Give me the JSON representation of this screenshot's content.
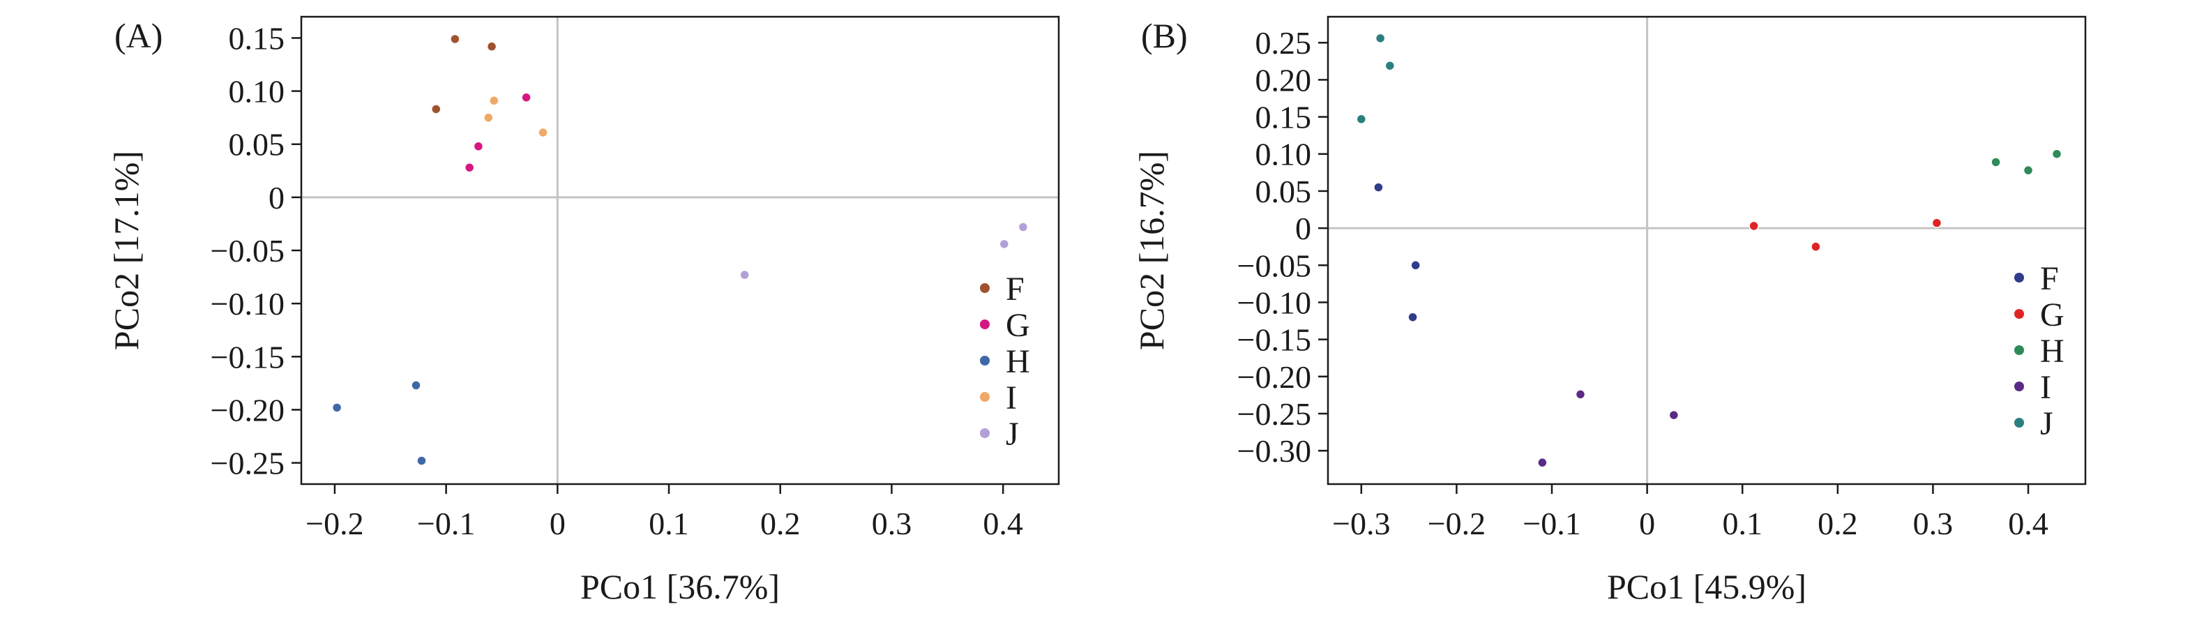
{
  "chart_data": [
    {
      "panel_label": "(A)",
      "type": "scatter",
      "xlabel": "PCo1 [36.7%]",
      "ylabel": "PCo2 [17.1%]",
      "xlim": [
        -0.23,
        0.45
      ],
      "ylim": [
        -0.27,
        0.17
      ],
      "xticks": [
        -0.2,
        -0.1,
        0,
        0.1,
        0.2,
        0.3,
        0.4
      ],
      "xtick_labels": [
        "−0.2",
        "−0.1",
        "0",
        "0.1",
        "0.2",
        "0.3",
        "0.4"
      ],
      "yticks": [
        0.15,
        0.1,
        0.05,
        0,
        -0.05,
        -0.1,
        -0.15,
        -0.2,
        -0.25
      ],
      "ytick_labels": [
        "0.15",
        "0.10",
        "0.05",
        "0",
        "−0.05",
        "−0.10",
        "−0.15",
        "−0.20",
        "−0.25"
      ],
      "legend_position": "right",
      "grid": false,
      "zero_lines": true,
      "series": [
        {
          "name": "F",
          "color": "#a0522d",
          "points": [
            [
              -0.092,
              0.149
            ],
            [
              -0.059,
              0.142
            ],
            [
              -0.109,
              0.083
            ]
          ]
        },
        {
          "name": "G",
          "color": "#d6177f",
          "points": [
            [
              -0.028,
              0.094
            ],
            [
              -0.071,
              0.048
            ],
            [
              -0.079,
              0.028
            ]
          ]
        },
        {
          "name": "H",
          "color": "#3f68a6",
          "points": [
            [
              -0.127,
              -0.177
            ],
            [
              -0.198,
              -0.198
            ],
            [
              -0.122,
              -0.248
            ]
          ]
        },
        {
          "name": "I",
          "color": "#f0a866",
          "points": [
            [
              -0.057,
              0.091
            ],
            [
              -0.062,
              0.075
            ],
            [
              -0.013,
              0.061
            ]
          ]
        },
        {
          "name": "J",
          "color": "#b3a0d6",
          "points": [
            [
              0.418,
              -0.028
            ],
            [
              0.401,
              -0.044
            ],
            [
              0.168,
              -0.073
            ]
          ]
        }
      ]
    },
    {
      "panel_label": "(B)",
      "type": "scatter",
      "xlabel": "PCo1 [45.9%]",
      "ylabel": "PCo2 [16.7%]",
      "xlim": [
        -0.335,
        0.46
      ],
      "ylim": [
        -0.345,
        0.285
      ],
      "xticks": [
        -0.3,
        -0.2,
        -0.1,
        0,
        0.1,
        0.2,
        0.3,
        0.4
      ],
      "xtick_labels": [
        "−0.3",
        "−0.2",
        "−0.1",
        "0",
        "0.1",
        "0.2",
        "0.3",
        "0.4"
      ],
      "yticks": [
        0.25,
        0.2,
        0.15,
        0.1,
        0.05,
        0,
        -0.05,
        -0.1,
        -0.15,
        -0.2,
        -0.25,
        -0.3
      ],
      "ytick_labels": [
        "0.25",
        "0.20",
        "0.15",
        "0.10",
        "0.05",
        "0",
        "−0.05",
        "−0.10",
        "−0.15",
        "−0.20",
        "−0.25",
        "−0.30"
      ],
      "legend_position": "right",
      "grid": false,
      "zero_lines": true,
      "series": [
        {
          "name": "F",
          "color": "#2e3c8a",
          "points": [
            [
              -0.282,
              0.055
            ],
            [
              -0.243,
              -0.05
            ],
            [
              -0.246,
              -0.12
            ]
          ]
        },
        {
          "name": "G",
          "color": "#e02424",
          "points": [
            [
              0.112,
              0.003
            ],
            [
              0.177,
              -0.025
            ],
            [
              0.304,
              0.007
            ]
          ]
        },
        {
          "name": "H",
          "color": "#2e8b57",
          "points": [
            [
              0.366,
              0.089
            ],
            [
              0.4,
              0.078
            ],
            [
              0.43,
              0.1
            ]
          ]
        },
        {
          "name": "I",
          "color": "#5b2a86",
          "points": [
            [
              -0.07,
              -0.224
            ],
            [
              0.028,
              -0.252
            ],
            [
              -0.11,
              -0.316
            ]
          ]
        },
        {
          "name": "J",
          "color": "#2a7f7f",
          "points": [
            [
              -0.28,
              0.256
            ],
            [
              -0.27,
              0.219
            ],
            [
              -0.3,
              0.147
            ]
          ]
        }
      ]
    }
  ]
}
